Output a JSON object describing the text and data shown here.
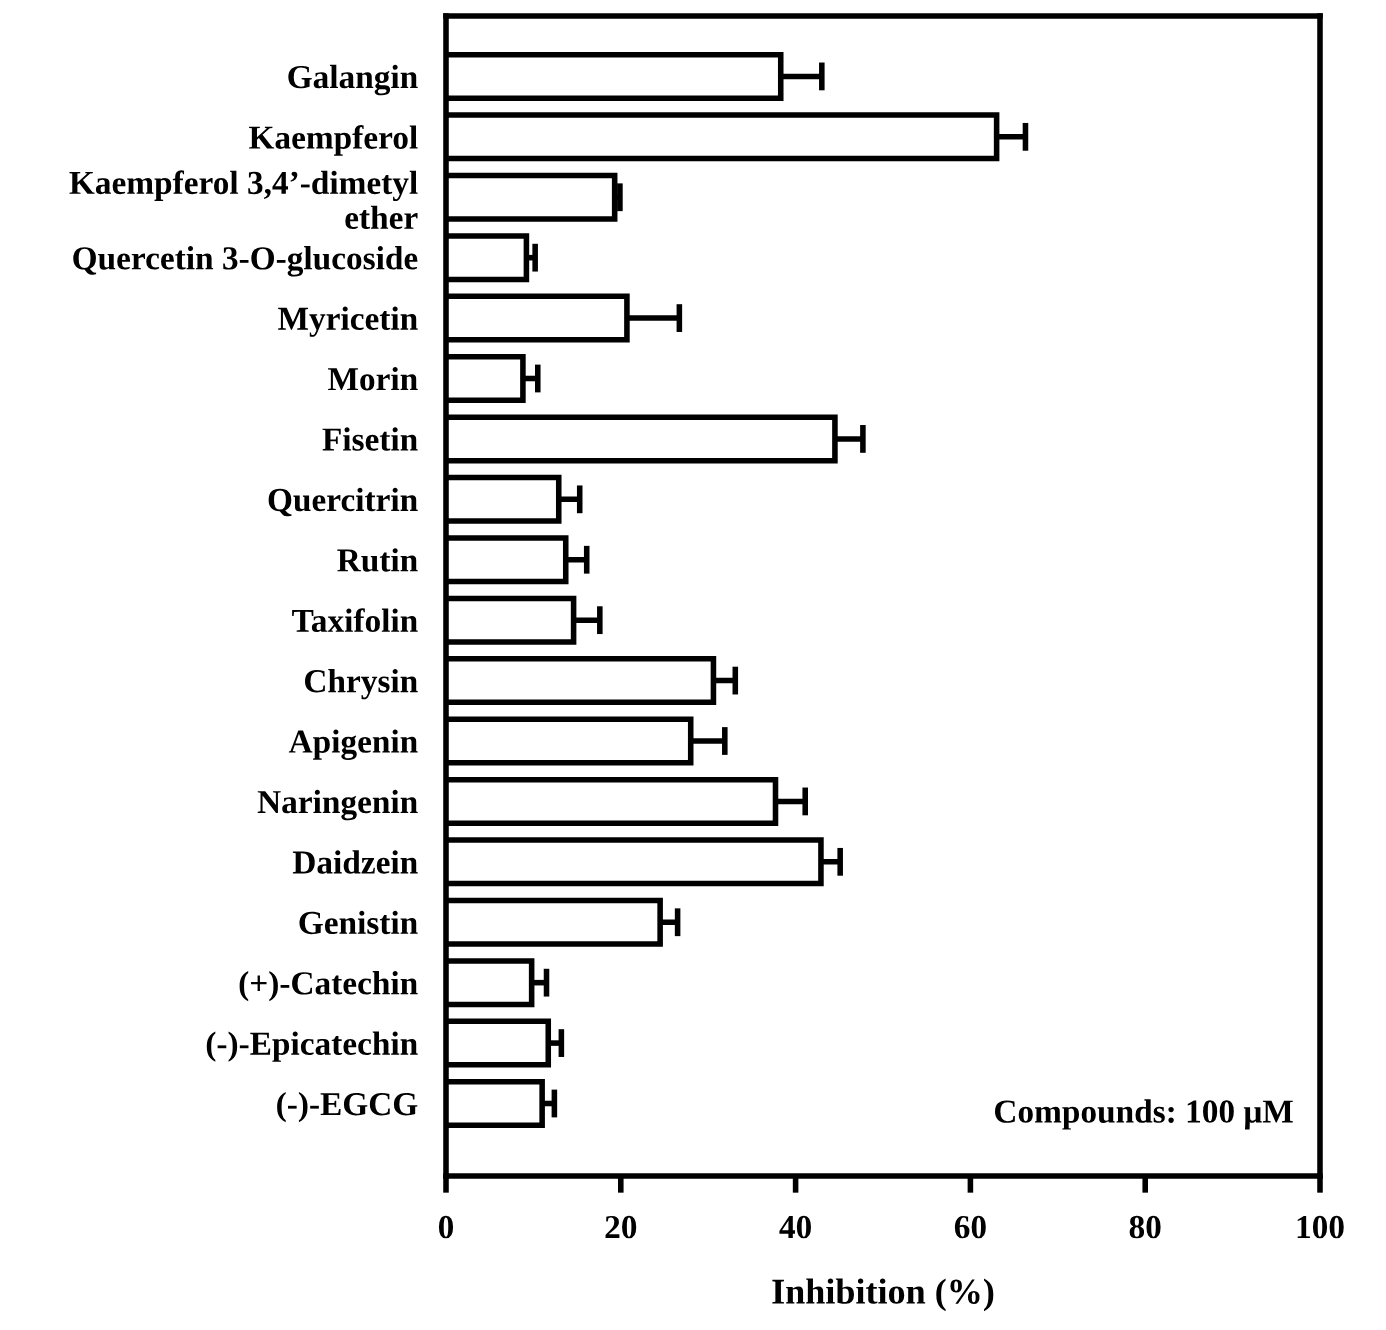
{
  "chart_data": {
    "type": "bar",
    "orientation": "horizontal",
    "xlabel": "Inhibition (%)",
    "categories": [
      "Galangin",
      "Kaempferol",
      "Kaempferol 3,4’-dimetyl\nether",
      "Quercetin 3-O-glucoside",
      "Myricetin",
      "Morin",
      "Fisetin",
      "Quercitrin",
      "Rutin",
      "Taxifolin",
      "Chrysin",
      "Apigenin",
      "Naringenin",
      "Daidzein",
      "Genistin",
      "(+)-Catechin",
      "(-)-Epicatechin",
      "(-)-EGCG"
    ],
    "values": [
      38.3,
      63,
      19.3,
      9.2,
      20.7,
      8.8,
      44.5,
      12.9,
      13.7,
      14.6,
      30.6,
      28.0,
      37.7,
      42.9,
      24.5,
      9.8,
      11.7,
      11.0
    ],
    "errors": [
      4.7,
      3.3,
      0.6,
      1.0,
      6.0,
      1.7,
      3.2,
      2.4,
      2.4,
      3.0,
      2.5,
      3.9,
      3.4,
      2.2,
      2.0,
      1.7,
      1.5,
      1.4
    ],
    "color": "#ffffff",
    "xlim": [
      0,
      100
    ],
    "xticks": [
      0,
      20,
      40,
      60,
      80,
      100
    ],
    "annotations": [
      "Compounds: 100 μM"
    ],
    "grid": false,
    "legend": false
  }
}
